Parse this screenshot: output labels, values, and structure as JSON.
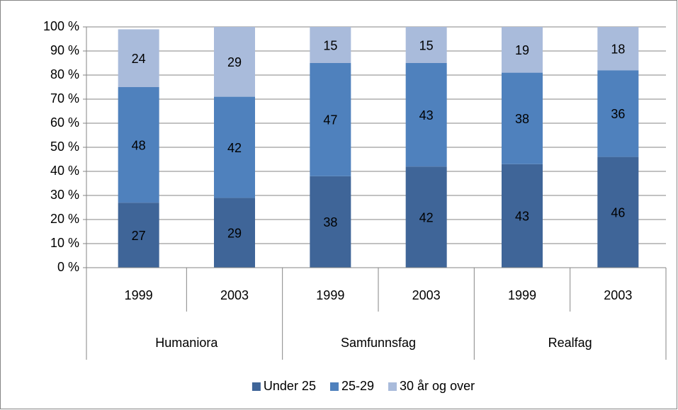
{
  "chart_data": {
    "type": "stacked_bar",
    "categories": [
      "1999",
      "2003",
      "1999",
      "2003",
      "1999",
      "2003"
    ],
    "groups": [
      "Humaniora",
      "Samfunnsfag",
      "Realfag"
    ],
    "series": [
      {
        "name": "Under 25",
        "color": "#3f6598",
        "values": [
          27,
          29,
          38,
          42,
          43,
          46
        ]
      },
      {
        "name": "25-29",
        "color": "#4f81bd",
        "values": [
          48,
          42,
          47,
          43,
          38,
          36
        ]
      },
      {
        "name": "30 år og over",
        "color": "#a9bbdb",
        "values": [
          24,
          29,
          15,
          15,
          19,
          18
        ]
      }
    ],
    "ylim": [
      0,
      100
    ],
    "yticks": [
      {
        "value": 0,
        "label": "0 %"
      },
      {
        "value": 10,
        "label": "10 %"
      },
      {
        "value": 20,
        "label": "20 %"
      },
      {
        "value": 30,
        "label": "30 %"
      },
      {
        "value": 40,
        "label": "40 %"
      },
      {
        "value": 50,
        "label": "50 %"
      },
      {
        "value": 60,
        "label": "60 %"
      },
      {
        "value": 70,
        "label": "70 %"
      },
      {
        "value": 80,
        "label": "80 %"
      },
      {
        "value": 90,
        "label": "90 %"
      },
      {
        "value": 100,
        "label": "100 %"
      }
    ],
    "grid": true,
    "legend": "bottom"
  }
}
